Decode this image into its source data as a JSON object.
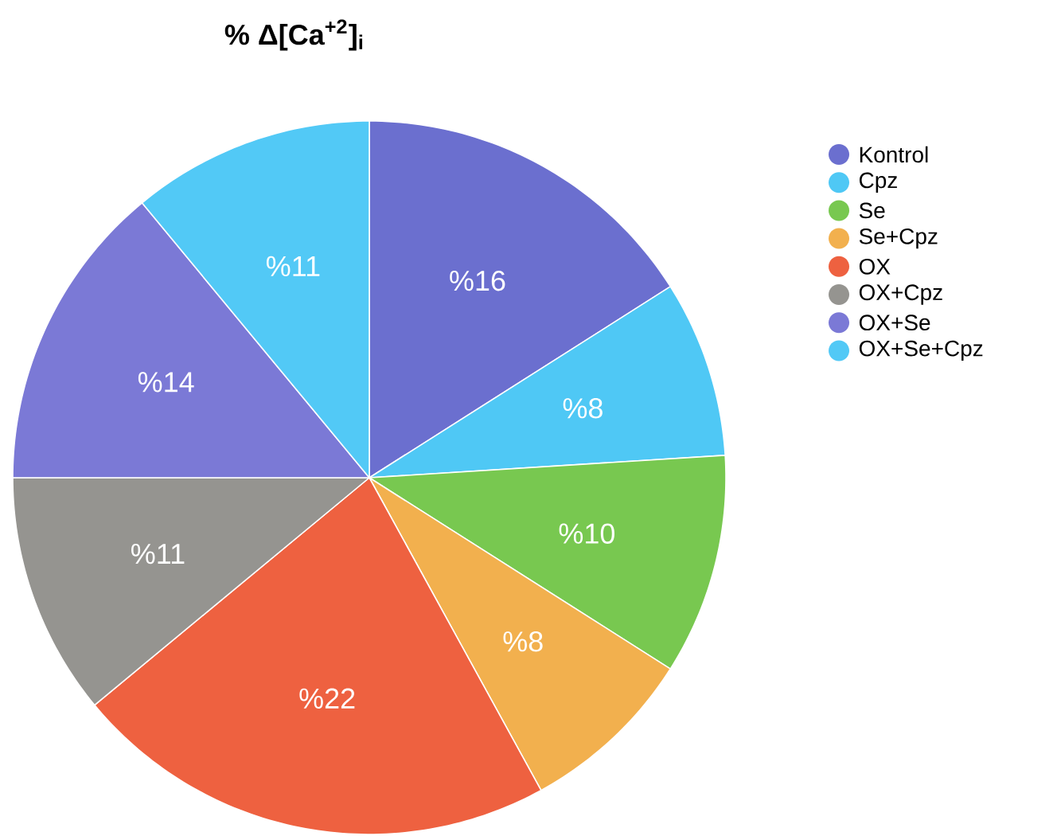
{
  "chart_data": {
    "type": "pie",
    "title": "% Δ[Ca$^{+2}$]$_{i}$",
    "categories": [
      "Kontrol",
      "Cpz",
      "Se",
      "Se+Cpz",
      "OX",
      "OX+Cpz",
      "OX+Se",
      "OX+Se+Cpz"
    ],
    "values": [
      16,
      8,
      10,
      8,
      22,
      11,
      14,
      11
    ],
    "value_labels": [
      "%16",
      "%8",
      "%10",
      "%8",
      "%22",
      "%11",
      "%14",
      "%11"
    ],
    "colors": [
      "#6b6fcf",
      "#4fc8f5",
      "#78c850",
      "#f2b04e",
      "#ee6140",
      "#959490",
      "#7b79d6",
      "#52c9f6"
    ],
    "legend": "top right"
  }
}
